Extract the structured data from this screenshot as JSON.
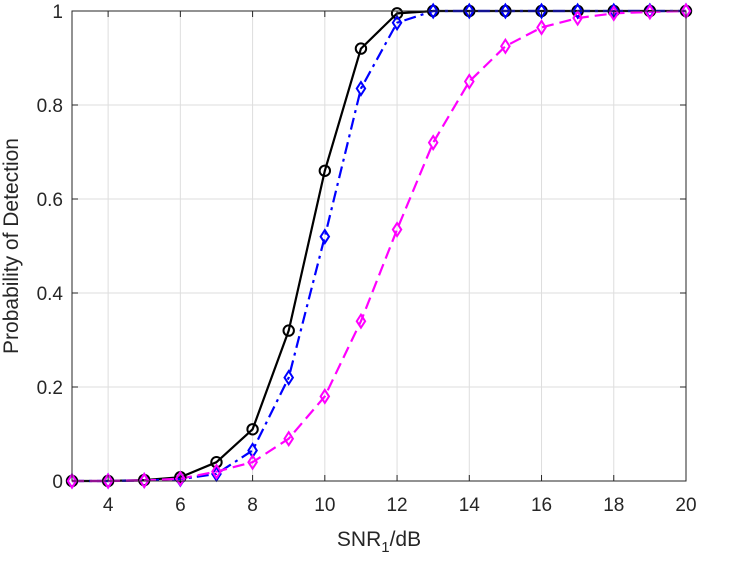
{
  "chart_data": {
    "type": "line",
    "title": "",
    "xlabel": "SNR",
    "xlabel_subscript": "1",
    "xlabel_suffix": "/dB",
    "ylabel": "Probability of Detection",
    "xlim": [
      3,
      20
    ],
    "ylim": [
      0,
      1
    ],
    "grid": true,
    "x": [
      3,
      4,
      5,
      6,
      7,
      8,
      9,
      10,
      11,
      12,
      13,
      14,
      15,
      16,
      17,
      18,
      19,
      20
    ],
    "x_ticks": [
      4,
      6,
      8,
      10,
      12,
      14,
      16,
      18,
      20
    ],
    "x_tick_labels": [
      "4",
      "6",
      "8",
      "10",
      "12",
      "14",
      "16",
      "18",
      "20"
    ],
    "y_ticks": [
      0,
      0.2,
      0.4,
      0.6,
      0.8,
      1
    ],
    "y_tick_labels": [
      "0",
      "0.2",
      "0.4",
      "0.6",
      "0.8",
      "1"
    ],
    "series": [
      {
        "color": "#000000",
        "line_style": "solid",
        "marker": "circle",
        "values": [
          0,
          0,
          0.002,
          0.008,
          0.04,
          0.11,
          0.32,
          0.66,
          0.92,
          0.995,
          1,
          1,
          1,
          1,
          1,
          1,
          1,
          1
        ]
      },
      {
        "color": "#0000ff",
        "line_style": "dashdot",
        "marker": "diamond",
        "values": [
          0,
          0,
          0.001,
          0.004,
          0.015,
          0.065,
          0.22,
          0.52,
          0.835,
          0.975,
          1,
          1,
          1,
          1,
          1,
          1,
          1,
          1
        ]
      },
      {
        "color": "#ff00ff",
        "line_style": "dashed",
        "marker": "diamond",
        "values": [
          0,
          0,
          0.001,
          0.005,
          0.02,
          0.04,
          0.09,
          0.18,
          0.34,
          0.535,
          0.72,
          0.85,
          0.925,
          0.965,
          0.985,
          0.995,
          0.998,
          1
        ]
      }
    ]
  }
}
